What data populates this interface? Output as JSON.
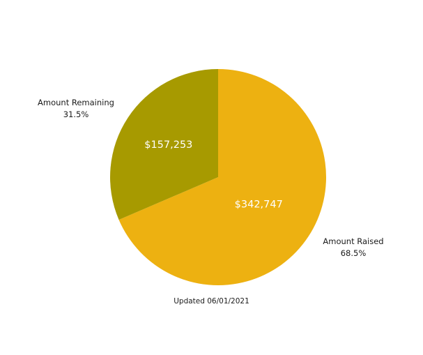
{
  "chart_data": {
    "type": "pie",
    "title": "",
    "slices": [
      {
        "name": "Amount Raised",
        "value": 342747,
        "value_label": "$342,747",
        "percent_label": "68.5%",
        "color": "#EDB111"
      },
      {
        "name": "Amount Remaining",
        "value": 157253,
        "value_label": "$157,253",
        "percent_label": "31.5%",
        "color": "#A79A00"
      }
    ],
    "start_angle": "12 o'clock",
    "direction": "clockwise",
    "legend": "none"
  },
  "footnote": "Updated 06/01/2021"
}
